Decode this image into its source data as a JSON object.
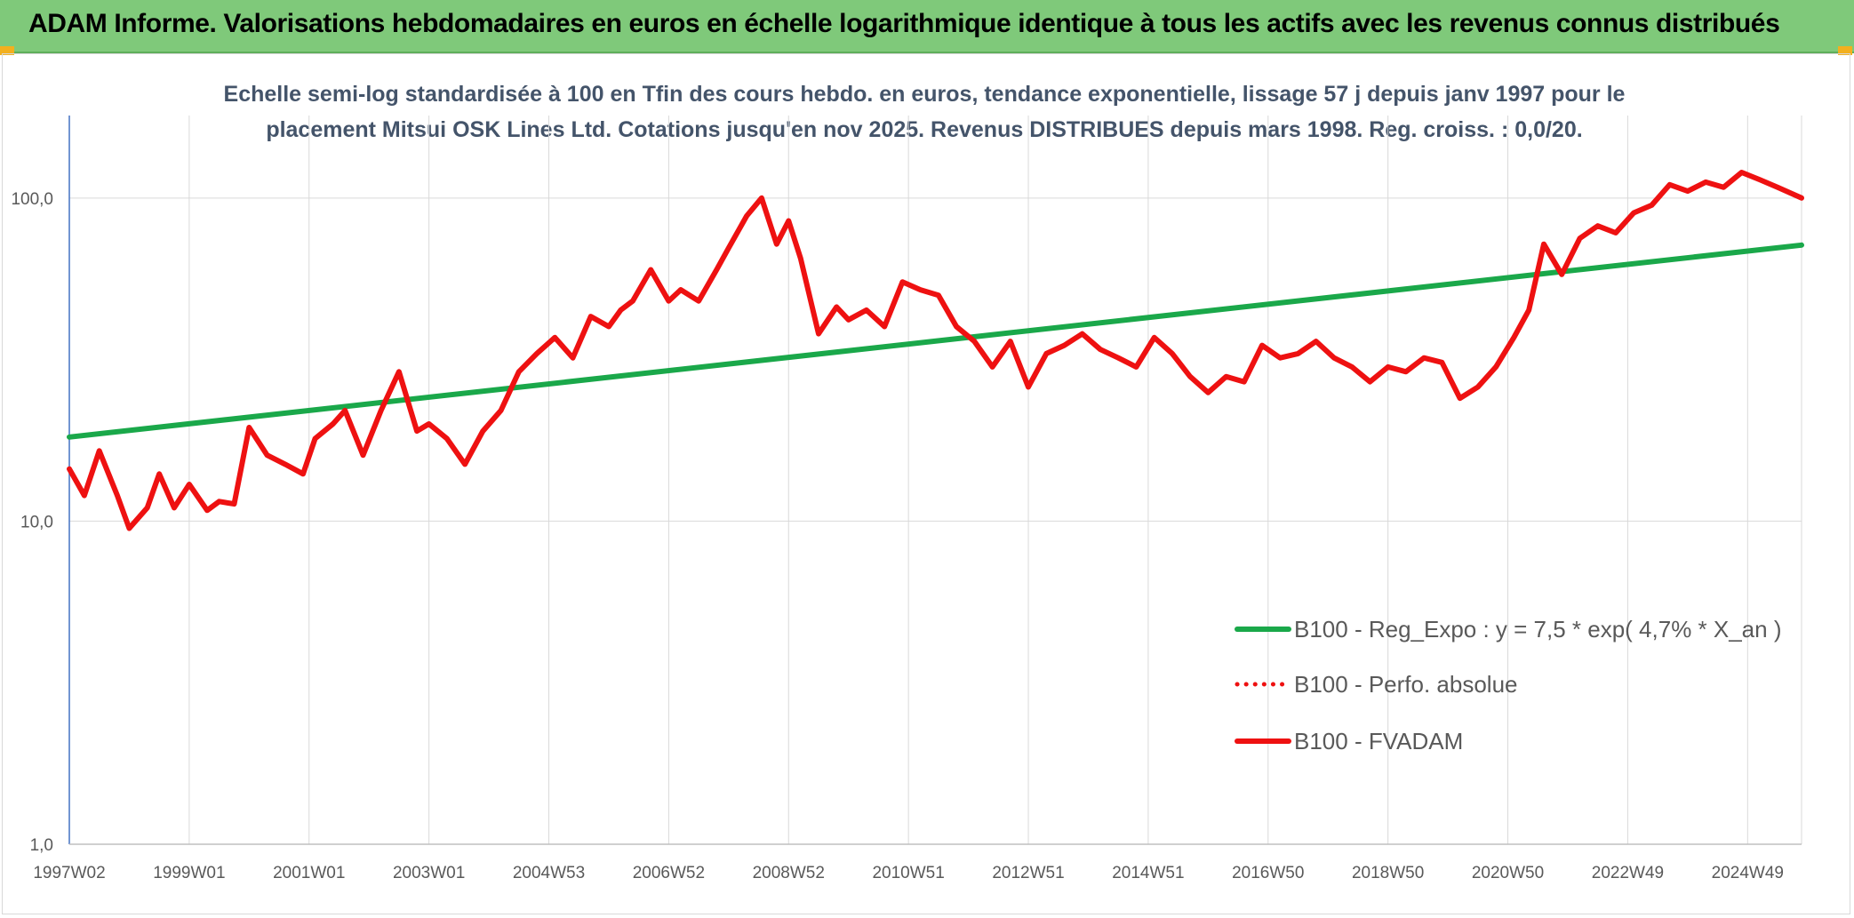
{
  "header": {
    "title": "ADAM Informe. Valorisations hebdomadaires en euros en échelle logarithmique identique à tous les actifs avec les revenus connus distribués"
  },
  "colors": {
    "banner": "#7fc97a",
    "trend": "#1aa84a",
    "price": "#ee1111",
    "grid": "#d9d9d9",
    "axis": "#4472c4"
  },
  "chart_data": {
    "type": "line",
    "title_line1": "Echelle semi-log standardisée à 100 en Tfin des cours hebdo. en euros, tendance exponentielle, lissage 57 j depuis janv 1997 pour le",
    "title_line2": "placement Mitsui OSK Lines Ltd. Cotations jusqu'en nov 2025. Revenus DISTRIBUES depuis mars 1998. Reg. croiss. : 0,0/20.",
    "y_scale": "log",
    "ylim": [
      1,
      180
    ],
    "xlim": [
      1997.0,
      2025.9
    ],
    "y_ticks": [
      {
        "value": 1,
        "label": "1,0"
      },
      {
        "value": 10,
        "label": "10,0"
      },
      {
        "value": 100,
        "label": "100,0"
      }
    ],
    "x_ticks": [
      {
        "value": 1997.0,
        "label": "1997W02"
      },
      {
        "value": 1999.0,
        "label": "1999W01"
      },
      {
        "value": 2001.0,
        "label": "2001W01"
      },
      {
        "value": 2003.0,
        "label": "2003W01"
      },
      {
        "value": 2005.0,
        "label": "2004W53"
      },
      {
        "value": 2007.0,
        "label": "2006W52"
      },
      {
        "value": 2009.0,
        "label": "2008W52"
      },
      {
        "value": 2011.0,
        "label": "2010W51"
      },
      {
        "value": 2013.0,
        "label": "2012W51"
      },
      {
        "value": 2015.0,
        "label": "2014W51"
      },
      {
        "value": 2017.0,
        "label": "2016W50"
      },
      {
        "value": 2019.0,
        "label": "2018W50"
      },
      {
        "value": 2021.0,
        "label": "2020W50"
      },
      {
        "value": 2023.0,
        "label": "2022W49"
      },
      {
        "value": 2025.0,
        "label": "2024W49"
      }
    ],
    "legend": {
      "position": "bottom-right",
      "entries": [
        {
          "label": "B100 - Reg_Expo : y = 7,5 * exp( 4,7% *  X_an )",
          "style": "solid",
          "series": "trend"
        },
        {
          "label": "B100 - Perfo. absolue",
          "style": "dotted",
          "series": "perfo"
        },
        {
          "label": "B100 - FVADAM",
          "style": "solid",
          "series": "fvadam"
        }
      ]
    },
    "series": [
      {
        "name": "B100 - Reg_Expo",
        "key": "trend",
        "x": [
          1997.0,
          2025.9
        ],
        "values": [
          18.2,
          71.5
        ]
      },
      {
        "name": "B100 - FVADAM",
        "key": "fvadam",
        "x": [
          1997.0,
          1997.25,
          1997.5,
          1997.8,
          1998.0,
          1998.3,
          1998.5,
          1998.75,
          1999.0,
          1999.3,
          1999.5,
          1999.75,
          2000.0,
          2000.3,
          2000.6,
          2000.9,
          2001.1,
          2001.4,
          2001.6,
          2001.9,
          2002.2,
          2002.5,
          2002.8,
          2003.0,
          2003.3,
          2003.6,
          2003.9,
          2004.2,
          2004.5,
          2004.8,
          2005.1,
          2005.4,
          2005.7,
          2006.0,
          2006.2,
          2006.4,
          2006.7,
          2007.0,
          2007.2,
          2007.5,
          2007.8,
          2008.0,
          2008.3,
          2008.55,
          2008.8,
          2009.0,
          2009.2,
          2009.5,
          2009.8,
          2010.0,
          2010.3,
          2010.6,
          2010.9,
          2011.2,
          2011.5,
          2011.8,
          2012.1,
          2012.4,
          2012.7,
          2013.0,
          2013.3,
          2013.6,
          2013.9,
          2014.2,
          2014.5,
          2014.8,
          2015.1,
          2015.4,
          2015.7,
          2016.0,
          2016.3,
          2016.6,
          2016.9,
          2017.2,
          2017.5,
          2017.8,
          2018.1,
          2018.4,
          2018.7,
          2019.0,
          2019.3,
          2019.6,
          2019.9,
          2020.2,
          2020.5,
          2020.8,
          2021.1,
          2021.35,
          2021.6,
          2021.9,
          2022.2,
          2022.5,
          2022.8,
          2023.1,
          2023.4,
          2023.7,
          2024.0,
          2024.3,
          2024.6,
          2024.9,
          2025.2,
          2025.5,
          2025.9
        ],
        "values": [
          14.5,
          12.0,
          16.5,
          12.0,
          9.5,
          11.0,
          14.0,
          11.0,
          13.0,
          10.8,
          11.5,
          11.3,
          19.5,
          16.0,
          15.0,
          14.0,
          18.0,
          20.0,
          22.0,
          16.0,
          22.0,
          29.0,
          19.0,
          20.0,
          18.0,
          15.0,
          19.0,
          22.0,
          29.0,
          33.0,
          37.0,
          32.0,
          43.0,
          40.0,
          45.0,
          48.0,
          60.0,
          48.0,
          52.0,
          48.0,
          60.0,
          70.0,
          88.0,
          100.0,
          72.0,
          85.0,
          65.0,
          38.0,
          46.0,
          42.0,
          45.0,
          40.0,
          55.0,
          52.0,
          50.0,
          40.0,
          36.0,
          30.0,
          36.0,
          26.0,
          33.0,
          35.0,
          38.0,
          34.0,
          32.0,
          30.0,
          37.0,
          33.0,
          28.0,
          25.0,
          28.0,
          27.0,
          35.0,
          32.0,
          33.0,
          36.0,
          32.0,
          30.0,
          27.0,
          30.0,
          29.0,
          32.0,
          31.0,
          24.0,
          26.0,
          30.0,
          37.0,
          45.0,
          72.0,
          58.0,
          75.0,
          82.0,
          78.0,
          90.0,
          95.0,
          110.0,
          105.0,
          112.0,
          108.0,
          120.0,
          114.0,
          108.0,
          100.0
        ]
      }
    ]
  }
}
